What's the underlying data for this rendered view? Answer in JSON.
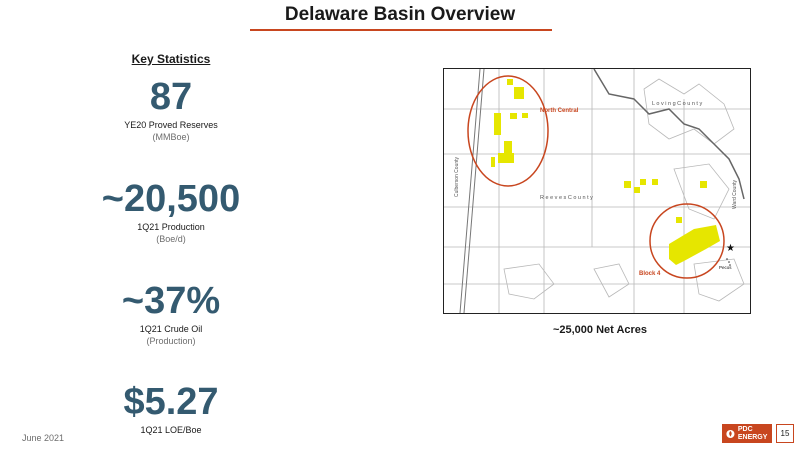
{
  "title": "Delaware Basin Overview",
  "key_statistics": {
    "heading": "Key Statistics",
    "stats": [
      {
        "value": "87",
        "label": "YE20 Proved Reserves",
        "sub": "(MMBoe)"
      },
      {
        "value": "~20,500",
        "label": "1Q21 Production",
        "sub": "(Boe/d)"
      },
      {
        "value": "~37%",
        "label": "1Q21 Crude Oil",
        "sub": "(Production)"
      },
      {
        "value": "$5.27",
        "label": "1Q21 LOE/Boe",
        "sub": ""
      }
    ]
  },
  "map": {
    "labels": {
      "north_central": "North Central",
      "block4": "Block 4",
      "reeves": "R e e v e s  C o u n t y",
      "loving": "L o v i n g  C o u n t y",
      "culberson": "Culberson County",
      "ward": "Ward County",
      "pecos": "Pecos"
    },
    "caption": "~25,000 Net Acres"
  },
  "footer": {
    "date": "June 2021",
    "logo_text": "PDC ENERGY",
    "page_number": "15"
  },
  "colors": {
    "title_rule": "#c8461f",
    "stat_value": "#345a70",
    "acreage": "#e6e600",
    "circle": "#c8461f",
    "logo": "#c8461f"
  }
}
